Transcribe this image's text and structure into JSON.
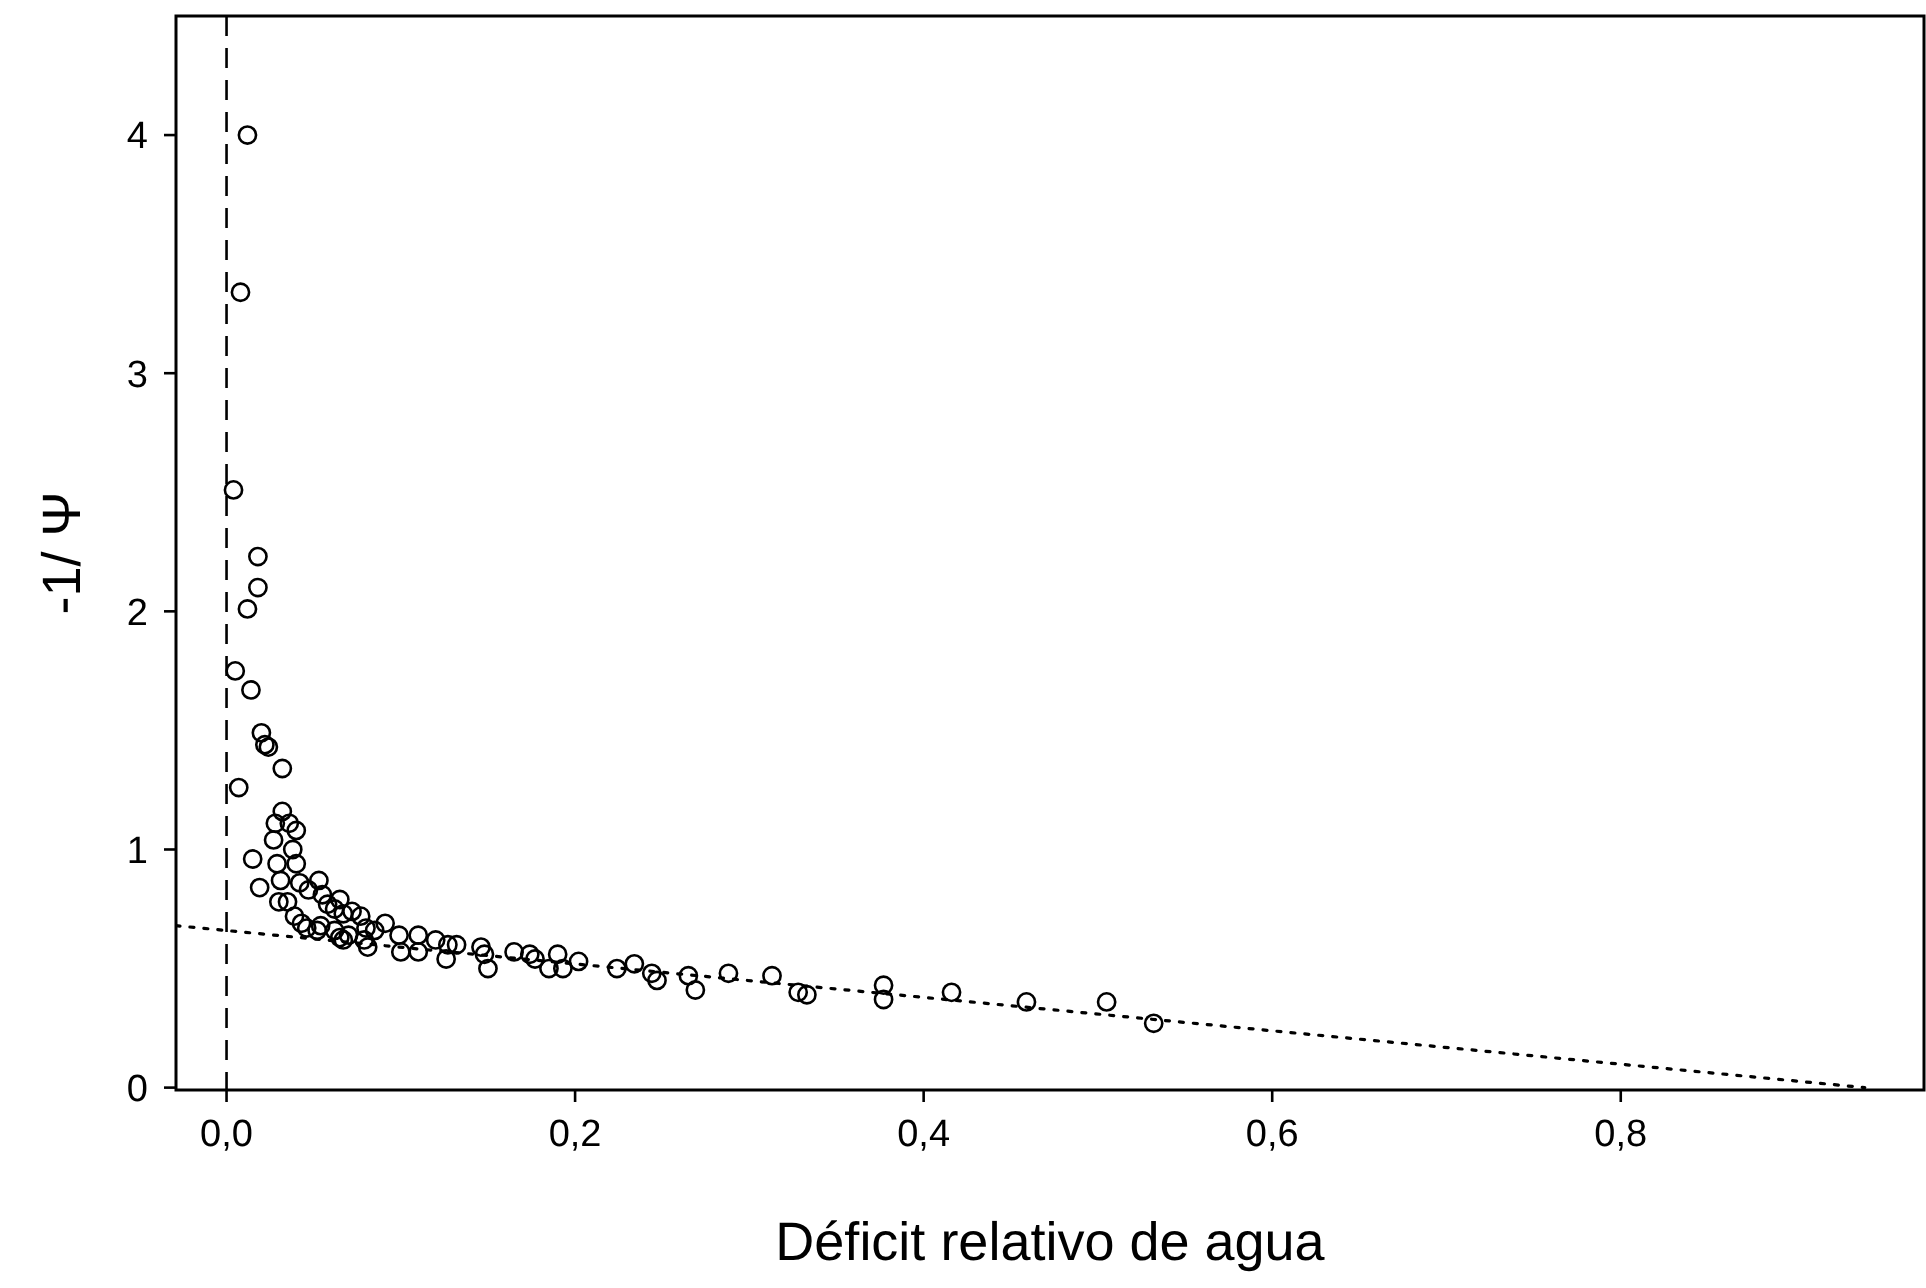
{
  "chart_data": {
    "type": "scatter",
    "xlabel": "Déficit relativo de agua",
    "ylabel": "-1/ Ψ",
    "xlim": [
      -0.029,
      0.974
    ],
    "ylim": [
      -0.01,
      4.5
    ],
    "xticks": [
      {
        "value": 0,
        "label": "0,0"
      },
      {
        "value": 0.2,
        "label": "0,2"
      },
      {
        "value": 0.4,
        "label": "0,4"
      },
      {
        "value": 0.6,
        "label": "0,6"
      },
      {
        "value": 0.8,
        "label": "0,8"
      }
    ],
    "yticks": [
      0,
      1,
      2,
      3,
      4
    ],
    "grid": false,
    "ref_lines": [
      {
        "axis": "x",
        "value": 0,
        "line_style": "dashed",
        "color": "#000000"
      }
    ],
    "series": [
      {
        "color": "#000000",
        "marker": "circle",
        "x": [
          0.012,
          0.008,
          0.004,
          0.018,
          0.018,
          0.012,
          0.005,
          0.014,
          0.02,
          0.024,
          0.022,
          0.032,
          0.007,
          0.032,
          0.028,
          0.036,
          0.04,
          0.027,
          0.038,
          0.015,
          0.029,
          0.04,
          0.019,
          0.031,
          0.042,
          0.053,
          0.047,
          0.055,
          0.03,
          0.035,
          0.065,
          0.058,
          0.062,
          0.072,
          0.039,
          0.067,
          0.077,
          0.043,
          0.046,
          0.054,
          0.08,
          0.091,
          0.052,
          0.062,
          0.065,
          0.07,
          0.085,
          0.079,
          0.067,
          0.081,
          0.099,
          0.11,
          0.1,
          0.11,
          0.12,
          0.127,
          0.132,
          0.126,
          0.146,
          0.148,
          0.15,
          0.165,
          0.174,
          0.177,
          0.185,
          0.19,
          0.193,
          0.202,
          0.224,
          0.234,
          0.244,
          0.247,
          0.265,
          0.269,
          0.288,
          0.313,
          0.328,
          0.333,
          0.377,
          0.377,
          0.416,
          0.459,
          0.505,
          0.532
        ],
        "values": [
          4.0,
          3.34,
          2.51,
          2.23,
          2.1,
          2.01,
          1.75,
          1.67,
          1.49,
          1.43,
          1.44,
          1.34,
          1.26,
          1.16,
          1.11,
          1.11,
          1.08,
          1.04,
          1.0,
          0.96,
          0.94,
          0.94,
          0.84,
          0.87,
          0.86,
          0.87,
          0.83,
          0.81,
          0.78,
          0.78,
          0.79,
          0.77,
          0.75,
          0.74,
          0.72,
          0.73,
          0.72,
          0.69,
          0.67,
          0.68,
          0.67,
          0.69,
          0.66,
          0.66,
          0.63,
          0.64,
          0.66,
          0.62,
          0.62,
          0.59,
          0.64,
          0.64,
          0.57,
          0.57,
          0.62,
          0.6,
          0.6,
          0.54,
          0.59,
          0.56,
          0.5,
          0.57,
          0.56,
          0.54,
          0.5,
          0.56,
          0.5,
          0.53,
          0.5,
          0.52,
          0.48,
          0.45,
          0.47,
          0.41,
          0.48,
          0.47,
          0.4,
          0.39,
          0.43,
          0.37,
          0.4,
          0.36,
          0.36,
          0.27
        ]
      },
      {
        "type": "line",
        "color": "#000000",
        "line_style": "dotted",
        "x": [
          -0.029,
          0.94
        ],
        "values": [
          0.68,
          0
        ]
      }
    ]
  }
}
